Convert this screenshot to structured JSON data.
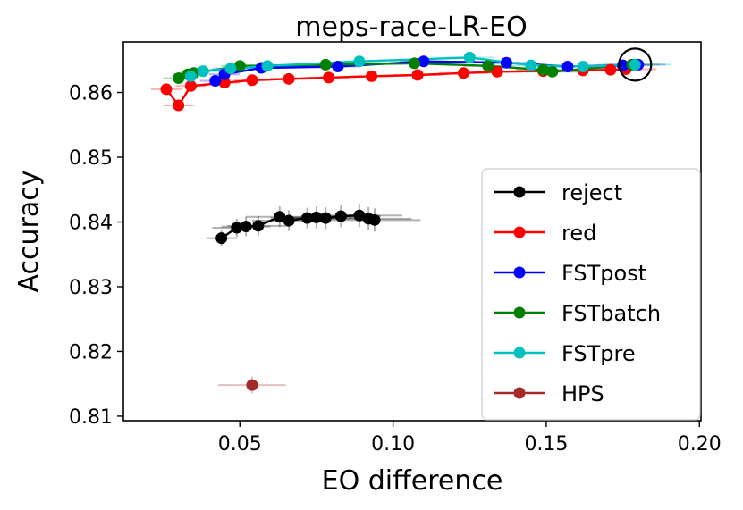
{
  "chart_data": {
    "type": "scatter",
    "title": "meps-race-LR-EO",
    "xlabel": "EO difference",
    "ylabel": "Accuracy",
    "xlim": [
      0.012,
      0.2005
    ],
    "ylim": [
      0.8093,
      0.8678
    ],
    "xticks": [
      0.05,
      0.1,
      0.15,
      0.2
    ],
    "xtick_labels": [
      "0.05",
      "0.10",
      "0.15",
      "0.20"
    ],
    "yticks": [
      0.81,
      0.82,
      0.83,
      0.84,
      0.85,
      0.86
    ],
    "ytick_labels": [
      "0.81",
      "0.82",
      "0.83",
      "0.84",
      "0.85",
      "0.86"
    ],
    "legend_position": "lower-right",
    "highlight": {
      "x": 0.179,
      "y": 0.8643,
      "marker": "open-circle"
    },
    "series": [
      {
        "name": "reject",
        "color": "#000000",
        "x": [
          0.044,
          0.049,
          0.052,
          0.056,
          0.063,
          0.066,
          0.072,
          0.075,
          0.078,
          0.083,
          0.089,
          0.092,
          0.094
        ],
        "y": [
          0.8375,
          0.8391,
          0.8393,
          0.8394,
          0.8408,
          0.8402,
          0.8406,
          0.8407,
          0.8406,
          0.8409,
          0.841,
          0.8405,
          0.8403
        ],
        "xerr": [
          0.005,
          0.008,
          0.008,
          0.01,
          0.011,
          0.012,
          0.012,
          0.012,
          0.013,
          0.013,
          0.014,
          0.014,
          0.015
        ],
        "yerr": [
          0.0012,
          0.0014,
          0.0015,
          0.0015,
          0.0016,
          0.0016,
          0.0016,
          0.0017,
          0.0017,
          0.0017,
          0.0018,
          0.0018,
          0.0018
        ]
      },
      {
        "name": "red",
        "color": "#ff0000",
        "x": [
          0.026,
          0.03,
          0.034,
          0.045,
          0.054,
          0.066,
          0.079,
          0.093,
          0.108,
          0.123,
          0.134,
          0.149,
          0.162,
          0.171,
          0.176
        ],
        "y": [
          0.8605,
          0.858,
          0.861,
          0.8615,
          0.8619,
          0.8621,
          0.8623,
          0.8625,
          0.8627,
          0.863,
          0.8632,
          0.8633,
          0.8634,
          0.8635,
          0.8636
        ],
        "xerr": [
          0.005,
          0.005,
          0.005,
          0.005,
          0.006,
          0.006,
          0.007,
          0.007,
          0.008,
          0.008,
          0.008,
          0.009,
          0.009,
          0.01,
          0.01
        ],
        "yerr": [
          0.0006,
          0.0006,
          0.0006,
          0.0006,
          0.0006,
          0.0006,
          0.0006,
          0.0006,
          0.0006,
          0.0006,
          0.0006,
          0.0006,
          0.0006,
          0.0006,
          0.0006
        ]
      },
      {
        "name": "FSTpost",
        "color": "#0000ff",
        "x": [
          0.042,
          0.045,
          0.057,
          0.082,
          0.11,
          0.137,
          0.157,
          0.175,
          0.18
        ],
        "y": [
          0.8618,
          0.8628,
          0.8638,
          0.864,
          0.8648,
          0.8646,
          0.864,
          0.8642,
          0.8643
        ],
        "xerr": [
          0.005,
          0.005,
          0.006,
          0.007,
          0.008,
          0.008,
          0.009,
          0.009,
          0.009
        ],
        "yerr": [
          0.0006,
          0.0006,
          0.0006,
          0.0006,
          0.0006,
          0.0006,
          0.0006,
          0.0006,
          0.0006
        ]
      },
      {
        "name": "FSTbatch",
        "color": "#008000",
        "x": [
          0.03,
          0.033,
          0.035,
          0.05,
          0.078,
          0.107,
          0.131,
          0.149,
          0.152,
          0.178
        ],
        "y": [
          0.8622,
          0.8628,
          0.863,
          0.8641,
          0.8643,
          0.8645,
          0.8641,
          0.8635,
          0.8632,
          0.8643
        ],
        "xerr": [
          0.005,
          0.005,
          0.005,
          0.006,
          0.007,
          0.008,
          0.008,
          0.009,
          0.009,
          0.009
        ],
        "yerr": [
          0.0006,
          0.0006,
          0.0006,
          0.0006,
          0.0006,
          0.0006,
          0.0006,
          0.0006,
          0.0006,
          0.0006
        ]
      },
      {
        "name": "FSTpre",
        "color": "#00bfbf",
        "x": [
          0.034,
          0.038,
          0.047,
          0.059,
          0.089,
          0.125,
          0.145,
          0.162,
          0.179
        ],
        "y": [
          0.8625,
          0.8633,
          0.8637,
          0.8641,
          0.8648,
          0.8654,
          0.8642,
          0.864,
          0.8643
        ],
        "xerr": [
          0.005,
          0.005,
          0.006,
          0.006,
          0.007,
          0.008,
          0.009,
          0.009,
          0.012
        ],
        "yerr": [
          0.0006,
          0.0006,
          0.0006,
          0.0006,
          0.0006,
          0.0006,
          0.0006,
          0.0006,
          0.0006
        ]
      },
      {
        "name": "HPS",
        "color": "#a52a2a",
        "x": [
          0.054
        ],
        "y": [
          0.8148
        ],
        "xerr": [
          0.011
        ],
        "yerr": [
          0.0013
        ]
      }
    ]
  }
}
